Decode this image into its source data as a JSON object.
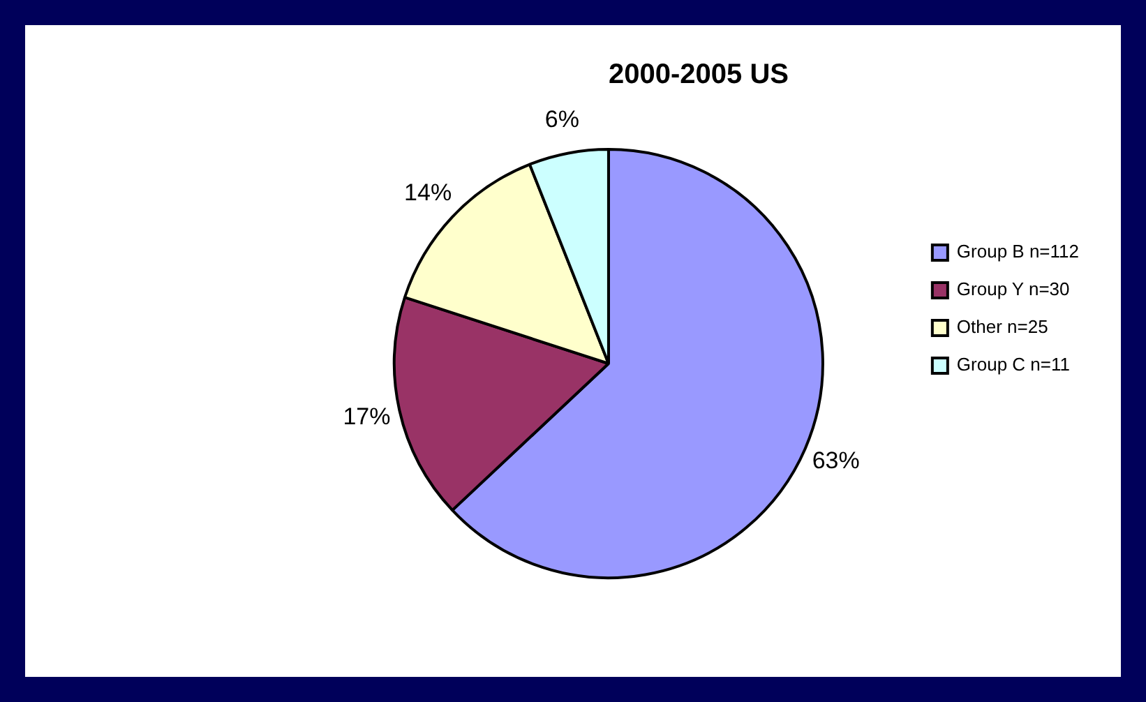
{
  "chart_data": {
    "type": "pie",
    "title": "2000-2005 US",
    "categories": [
      "Group B n=112",
      "Group Y n=30",
      "Other n=25",
      "Group C n=11"
    ],
    "values": [
      63,
      17,
      14,
      6
    ],
    "colors": [
      "#9999ff",
      "#993366",
      "#ffffcc",
      "#ccffff"
    ],
    "value_labels": [
      "63%",
      "17%",
      "14%",
      "6%"
    ],
    "legend": "right"
  }
}
